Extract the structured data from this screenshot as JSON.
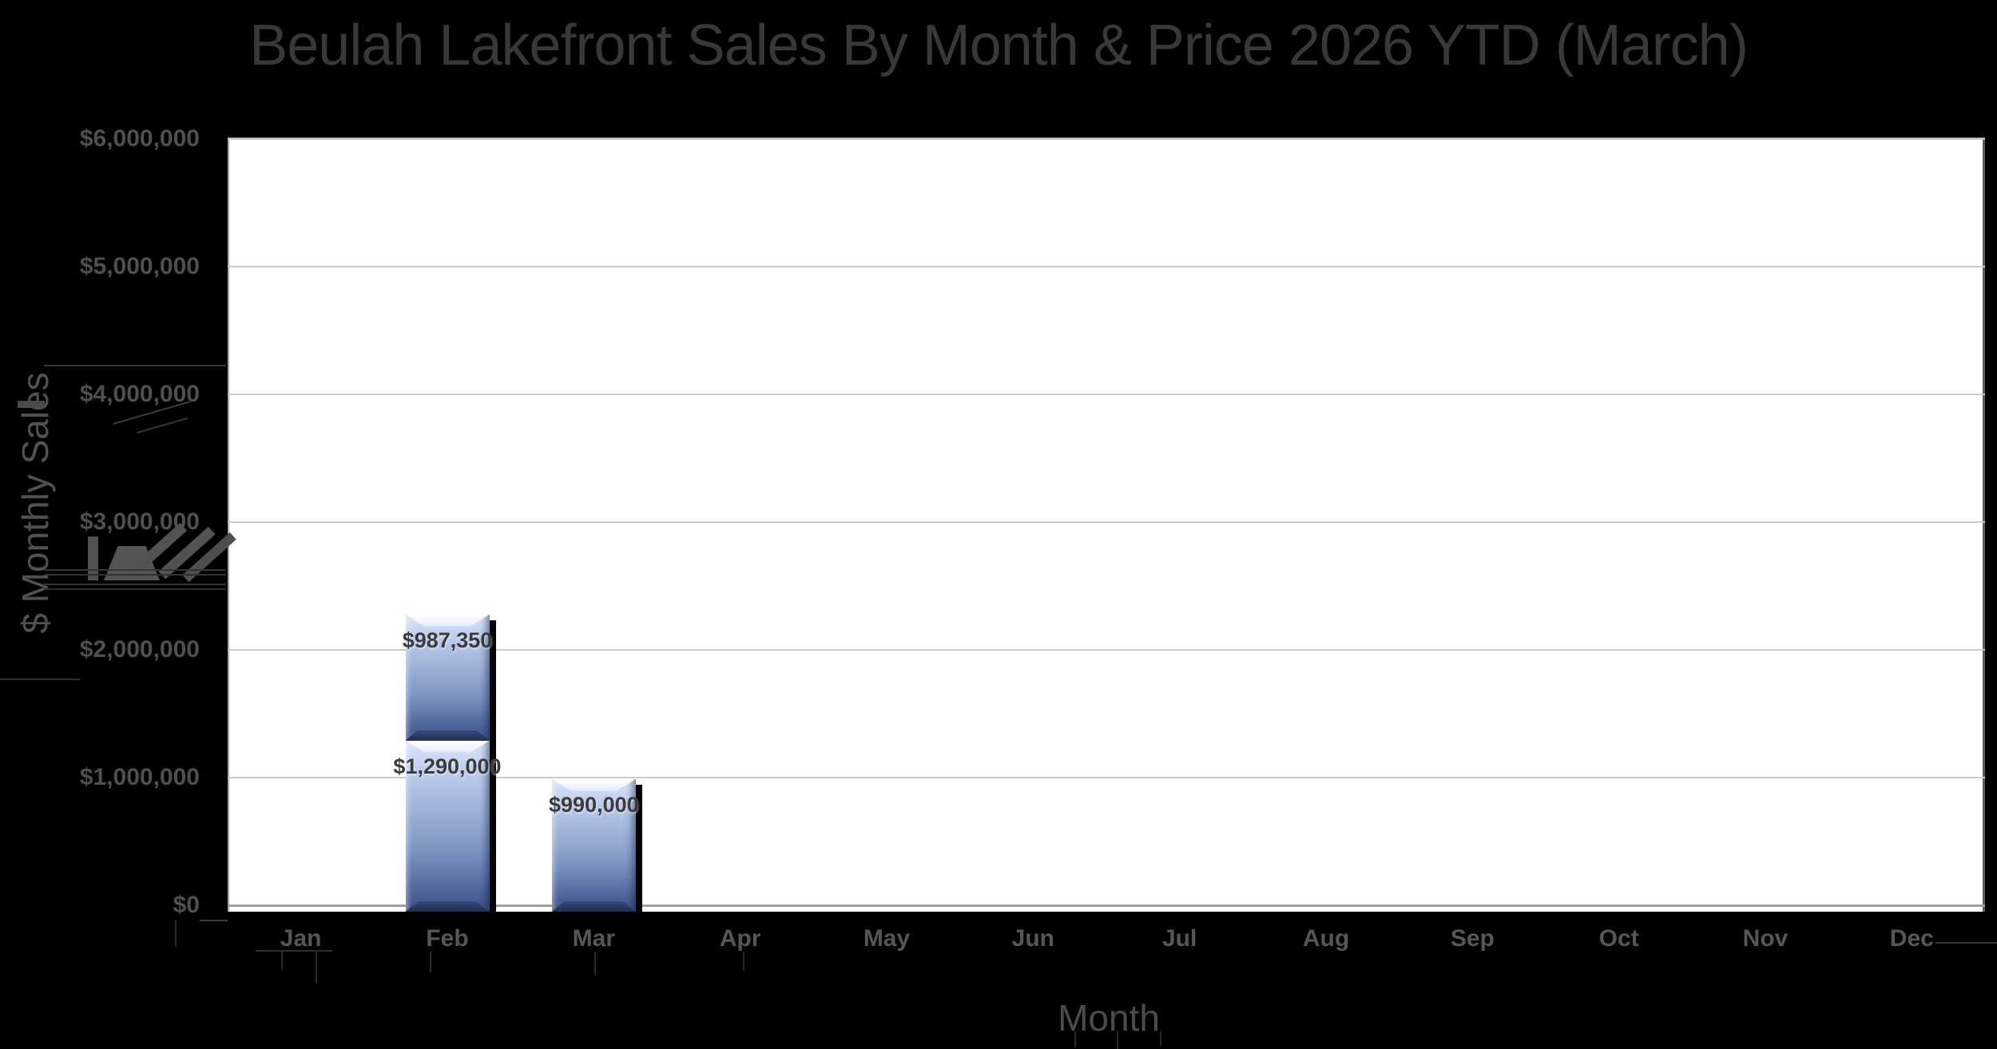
{
  "title": "Beulah Lakefront Sales By Month & Price 2026 YTD (March)",
  "chart_data": {
    "type": "bar",
    "stacked": true,
    "title": "Beulah Lakefront Sales By Month & Price 2026 YTD (March)",
    "xlabel": "Month",
    "ylabel": "$ Monthly Sales",
    "categories": [
      "Jan",
      "Feb",
      "Mar",
      "Apr",
      "May",
      "Jun",
      "Jul",
      "Aug",
      "Sep",
      "Oct",
      "Nov",
      "Dec"
    ],
    "ylim": [
      0,
      6000000
    ],
    "y_tick_interval": 1000000,
    "y_tick_labels": [
      "$0",
      "$1,000,000",
      "$2,000,000",
      "$3,000,000",
      "$4,000,000",
      "$5,000,000",
      "$6,000,000"
    ],
    "grid": true,
    "legend": false,
    "bars": [
      {
        "month": "Feb",
        "segments": [
          {
            "value": 1290000,
            "label": "$1,290,000"
          },
          {
            "value": 987350,
            "label": "$987,350"
          }
        ]
      },
      {
        "month": "Mar",
        "segments": [
          {
            "value": 990000,
            "label": "$990,000"
          }
        ]
      }
    ],
    "colors": {
      "background": "#000000",
      "plot_background": "#ffffff",
      "gridline": "#c9c9c9",
      "bar_gradient_top": "#d4dff6",
      "bar_gradient_bottom": "#3d5284",
      "title_text": "#383838",
      "axis_text": "#4f4f4f",
      "data_label_text": "#3b3b3b"
    }
  }
}
